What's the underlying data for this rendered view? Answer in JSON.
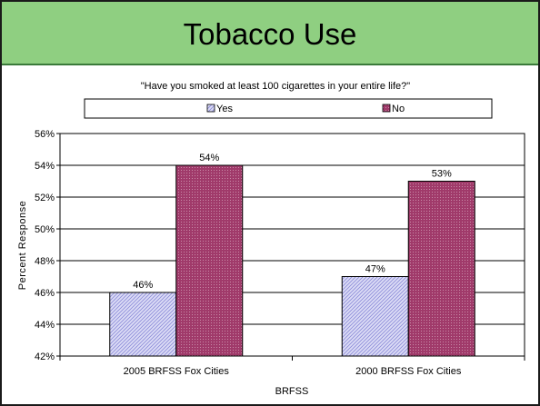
{
  "slide": {
    "title": "Tobacco Use"
  },
  "colors": {
    "title_band": "#8fcf81",
    "yes_fill": "#dcdcf6",
    "yes_hatch": "#8a8ad8",
    "no_fill": "#a03a6a",
    "no_dots": "#c98aa8"
  },
  "chart_data": {
    "type": "bar",
    "title": "\"Have you smoked at least 100 cigarettes in your entire life?\"",
    "xlabel": "BRFSS",
    "ylabel": "Percent Response",
    "categories": [
      "2005 BRFSS Fox Cities",
      "2000 BRFSS Fox Cities"
    ],
    "series": [
      {
        "name": "Yes",
        "values": [
          46,
          47
        ],
        "data_labels": [
          "46%",
          "47%"
        ]
      },
      {
        "name": "No",
        "values": [
          54,
          53
        ],
        "data_labels": [
          "54%",
          "53%"
        ]
      }
    ],
    "ylim": [
      42,
      56
    ],
    "yticks": [
      42,
      44,
      46,
      48,
      50,
      52,
      54,
      56
    ],
    "ytick_labels": [
      "42%",
      "44%",
      "46%",
      "48%",
      "50%",
      "52%",
      "54%",
      "56%"
    ],
    "grid": true,
    "legend_position": "top"
  }
}
